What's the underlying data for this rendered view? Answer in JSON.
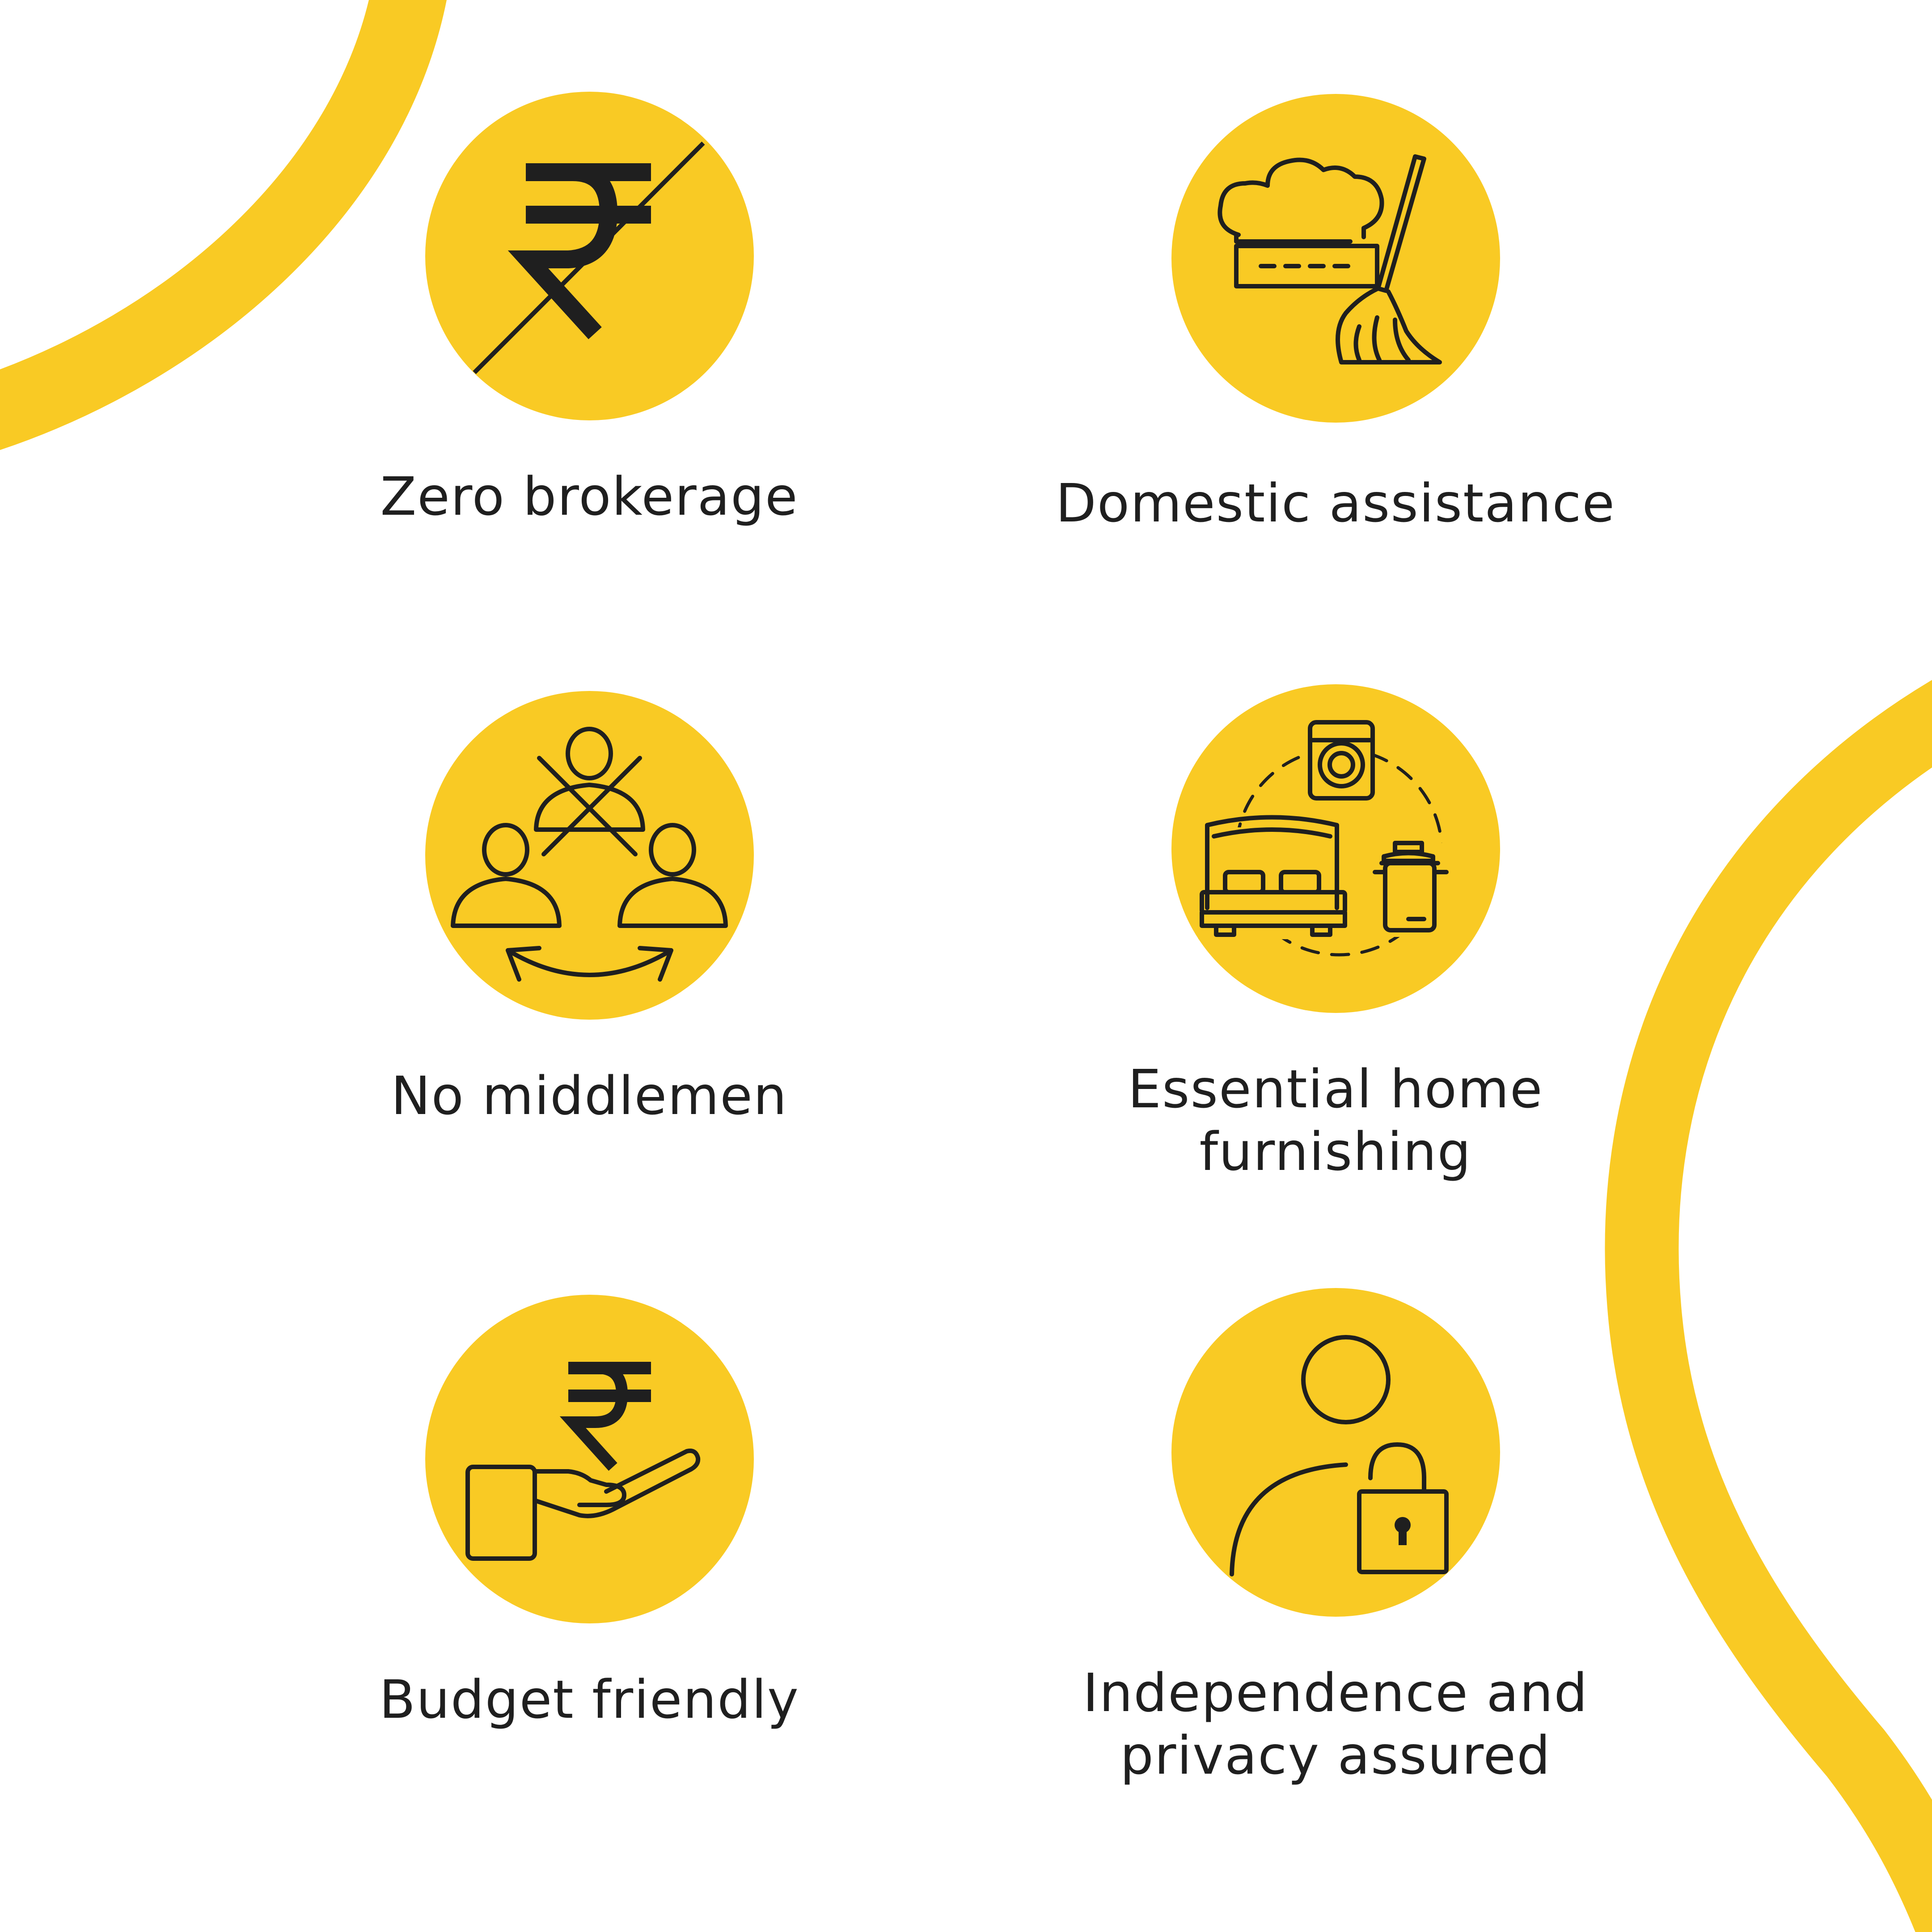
{
  "colors": {
    "accent": "#F9CA24",
    "text": "#1f1f1f",
    "background": "#ffffff"
  },
  "features": [
    {
      "label": "Zero brokerage",
      "icon": "rupee-crossed-icon"
    },
    {
      "label": "Domestic assistance",
      "icon": "chef-hat-broom-icon"
    },
    {
      "label": "No middlemen",
      "icon": "people-no-middleman-icon"
    },
    {
      "label": "Essential home furnishing",
      "icon": "bed-washer-pot-icon"
    },
    {
      "label": "Budget friendly",
      "icon": "rupee-hand-icon"
    },
    {
      "label": "Independence and privacy assured",
      "icon": "person-lock-icon"
    }
  ]
}
